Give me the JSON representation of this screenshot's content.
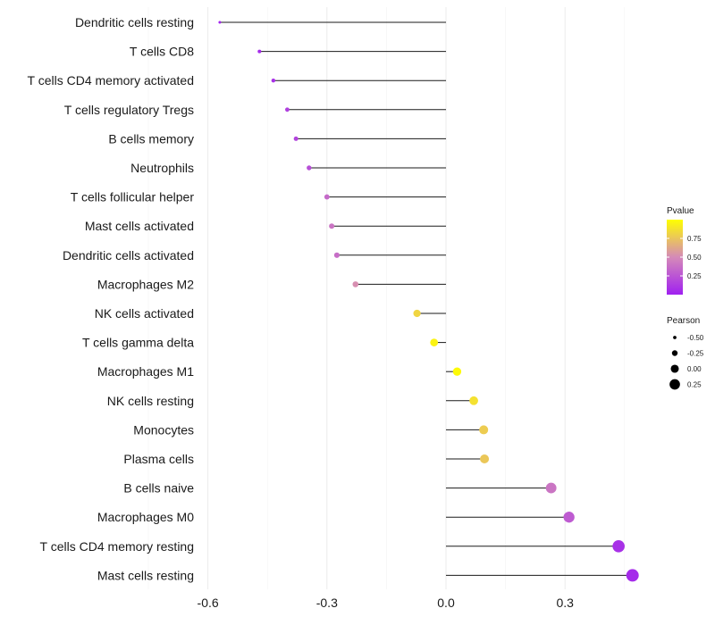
{
  "chart_data": {
    "type": "lollipop",
    "title": "",
    "xlabel": "",
    "ylabel": "",
    "xlim": [
      -0.6,
      0.48
    ],
    "x_ticks": [
      -0.6,
      -0.3,
      0.0,
      0.3
    ],
    "x_tick_labels": [
      "-0.6",
      "-0.3",
      "0.0",
      "0.3"
    ],
    "grid": "vertical",
    "categories": [
      "Dendritic cells resting",
      "T cells CD8",
      "T cells CD4 memory activated",
      "T cells regulatory  Tregs ",
      "B cells memory",
      "Neutrophils",
      "T cells follicular helper",
      "Mast cells activated",
      "Dendritic cells activated",
      "Macrophages M2",
      "NK cells activated",
      "T cells gamma delta",
      "Macrophages M1",
      "NK cells resting",
      "Monocytes",
      "Plasma cells",
      "B cells naive",
      "Macrophages M0",
      "T cells CD4 memory resting",
      "Mast cells resting"
    ],
    "pearson": [
      -0.57,
      -0.47,
      -0.435,
      -0.4,
      -0.378,
      -0.345,
      -0.3,
      -0.288,
      -0.275,
      -0.228,
      -0.073,
      -0.03,
      0.028,
      0.07,
      0.095,
      0.097,
      0.265,
      0.31,
      0.435,
      0.47
    ],
    "pvalue": [
      0.02,
      0.05,
      0.08,
      0.15,
      0.17,
      0.22,
      0.35,
      0.4,
      0.37,
      0.52,
      0.82,
      0.95,
      0.98,
      0.87,
      0.78,
      0.76,
      0.4,
      0.28,
      0.08,
      0.05
    ],
    "legend": {
      "color_title": "Pvalue",
      "color_ticks": [
        0.25,
        0.5,
        0.75
      ],
      "color_tick_labels": [
        "0.25",
        "0.50",
        "0.75"
      ],
      "color_range": [
        0.0,
        1.0
      ],
      "color_low": "#a020f0",
      "color_mid": "#d58ab8",
      "color_high": "#ffff00",
      "size_title": "Pearson",
      "size_values": [
        -0.5,
        -0.25,
        0.0,
        0.25
      ],
      "size_labels": [
        "-0.50",
        "-0.25",
        "0.00",
        "0.25"
      ],
      "placement": "right"
    }
  }
}
